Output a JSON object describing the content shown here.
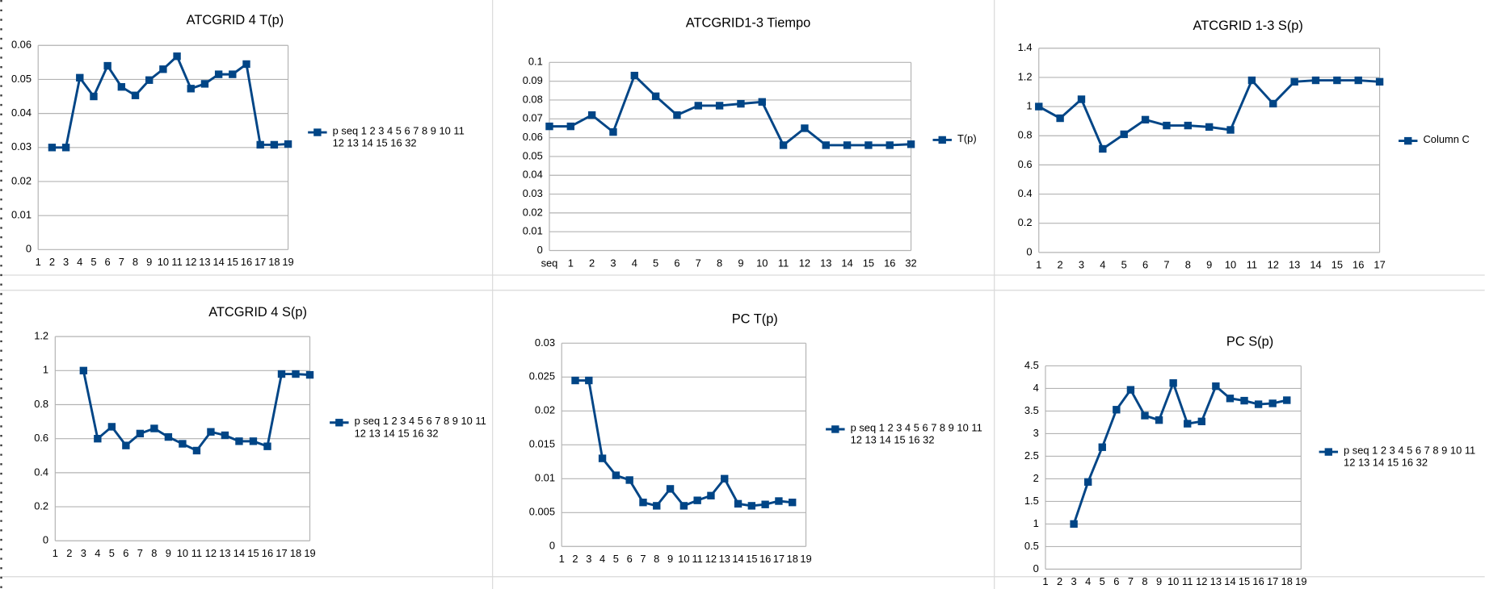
{
  "chart_data": [
    {
      "type": "line",
      "title": "ATCGRID 4 T(p)",
      "categories": [
        "1",
        "2",
        "3",
        "4",
        "5",
        "6",
        "7",
        "8",
        "9",
        "10",
        "11",
        "12",
        "13",
        "14",
        "15",
        "16",
        "17",
        "18",
        "19"
      ],
      "series": [
        {
          "name": "p seq 1 2 3 4 5 6 7 8 9 10 11 12 13 14 15 16 32",
          "color": "#004586",
          "values": [
            null,
            0.03,
            0.03,
            0.0505,
            0.045,
            0.054,
            0.0478,
            0.0453,
            0.0498,
            0.053,
            0.0568,
            0.0473,
            0.0487,
            0.0515,
            0.0515,
            0.0545,
            0.0308,
            0.0308,
            0.031
          ]
        }
      ],
      "ylim": [
        0,
        0.06
      ],
      "yticks": [
        0,
        0.01,
        0.02,
        0.03,
        0.04,
        0.05,
        0.06
      ],
      "grid": true,
      "legend": "right"
    },
    {
      "type": "line",
      "title": "ATCGRID1-3 Tiempo",
      "categories": [
        "seq",
        "1",
        "2",
        "3",
        "4",
        "5",
        "6",
        "7",
        "8",
        "9",
        "10",
        "11",
        "12",
        "13",
        "14",
        "15",
        "16",
        "32"
      ],
      "series": [
        {
          "name": "T(p)",
          "color": "#004586",
          "values": [
            0.066,
            0.066,
            0.072,
            0.063,
            0.093,
            0.082,
            0.072,
            0.077,
            0.077,
            0.078,
            0.079,
            0.056,
            0.065,
            0.056,
            0.056,
            0.056,
            0.056,
            0.0565
          ]
        }
      ],
      "ylim": [
        0,
        0.1
      ],
      "yticks": [
        0,
        0.01,
        0.02,
        0.03,
        0.04,
        0.05,
        0.06,
        0.07,
        0.08,
        0.09,
        0.1
      ],
      "grid": true,
      "legend": "right"
    },
    {
      "type": "line",
      "title": "ATCGRID 1-3 S(p)",
      "categories": [
        "1",
        "2",
        "3",
        "4",
        "5",
        "6",
        "7",
        "8",
        "9",
        "10",
        "11",
        "12",
        "13",
        "14",
        "15",
        "16",
        "17"
      ],
      "series": [
        {
          "name": "Column C",
          "color": "#004586",
          "values": [
            1.0,
            0.92,
            1.05,
            0.71,
            0.81,
            0.91,
            0.87,
            0.87,
            0.86,
            0.84,
            1.18,
            1.02,
            1.17,
            1.18,
            1.18,
            1.18,
            1.17
          ]
        }
      ],
      "ylim": [
        0,
        1.4
      ],
      "yticks": [
        0,
        0.2,
        0.4,
        0.6,
        0.8,
        1,
        1.2,
        1.4
      ],
      "grid": true,
      "legend": "right"
    },
    {
      "type": "line",
      "title": "ATCGRID 4 S(p)",
      "categories": [
        "1",
        "2",
        "3",
        "4",
        "5",
        "6",
        "7",
        "8",
        "9",
        "10",
        "11",
        "12",
        "13",
        "14",
        "15",
        "16",
        "17",
        "18",
        "19"
      ],
      "series": [
        {
          "name": "p seq 1 2 3 4 5 6 7 8 9 10 11 12 13 14 15 16 32",
          "color": "#004586",
          "values": [
            null,
            null,
            1.0,
            0.6,
            0.67,
            0.56,
            0.63,
            0.66,
            0.61,
            0.57,
            0.53,
            0.64,
            0.62,
            0.585,
            0.585,
            0.555,
            0.98,
            0.98,
            0.975
          ]
        }
      ],
      "ylim": [
        0,
        1.2
      ],
      "yticks": [
        0,
        0.2,
        0.4,
        0.6,
        0.8,
        1,
        1.2
      ],
      "grid": true,
      "legend": "right"
    },
    {
      "type": "line",
      "title": "PC T(p)",
      "categories": [
        "1",
        "2",
        "3",
        "4",
        "5",
        "6",
        "7",
        "8",
        "9",
        "10",
        "11",
        "12",
        "13",
        "14",
        "15",
        "16",
        "17",
        "18",
        "19"
      ],
      "series": [
        {
          "name": "p seq 1 2 3 4 5 6 7 8 9 10 11 12 13 14 15 16 32",
          "color": "#004586",
          "values": [
            null,
            0.0245,
            0.0245,
            0.013,
            0.0105,
            0.0098,
            0.0065,
            0.006,
            0.0085,
            0.006,
            0.0068,
            0.0075,
            0.01,
            0.0063,
            0.006,
            0.0062,
            0.0067,
            0.0065,
            null
          ]
        }
      ],
      "ylim": [
        0,
        0.03
      ],
      "yticks": [
        0,
        0.005,
        0.01,
        0.015,
        0.02,
        0.025,
        0.03
      ],
      "grid": true,
      "legend": "right"
    },
    {
      "type": "line",
      "title": "PC S(p)",
      "categories": [
        "1",
        "2",
        "3",
        "4",
        "5",
        "6",
        "7",
        "8",
        "9",
        "10",
        "11",
        "12",
        "13",
        "14",
        "15",
        "16",
        "17",
        "18",
        "19"
      ],
      "series": [
        {
          "name": "p seq 1 2 3 4 5 6 7 8 9 10 11 12 13 14 15 16 32",
          "color": "#004586",
          "values": [
            null,
            null,
            1.0,
            1.93,
            2.7,
            3.53,
            3.97,
            3.4,
            3.3,
            4.12,
            3.22,
            3.27,
            4.05,
            3.78,
            3.73,
            3.65,
            3.67,
            3.74,
            null
          ]
        }
      ],
      "ylim": [
        0,
        4.5
      ],
      "yticks": [
        0,
        0.5,
        1,
        1.5,
        2,
        2.5,
        3,
        3.5,
        4,
        4.5
      ],
      "grid": true,
      "legend": "right"
    }
  ]
}
